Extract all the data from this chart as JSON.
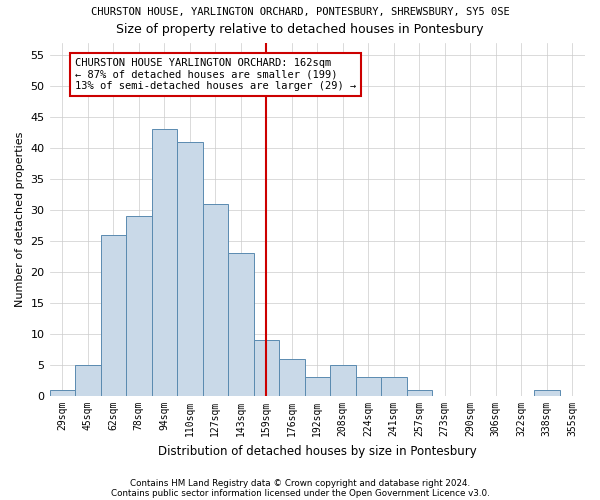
{
  "title": "CHURSTON HOUSE, YARLINGTON ORCHARD, PONTESBURY, SHREWSBURY, SY5 0SE",
  "subtitle": "Size of property relative to detached houses in Pontesbury",
  "xlabel": "Distribution of detached houses by size in Pontesbury",
  "ylabel": "Number of detached properties",
  "categories": [
    "29sqm",
    "45sqm",
    "62sqm",
    "78sqm",
    "94sqm",
    "110sqm",
    "127sqm",
    "143sqm",
    "159sqm",
    "176sqm",
    "192sqm",
    "208sqm",
    "224sqm",
    "241sqm",
    "257sqm",
    "273sqm",
    "290sqm",
    "306sqm",
    "322sqm",
    "338sqm",
    "355sqm"
  ],
  "values": [
    1,
    5,
    26,
    29,
    43,
    41,
    31,
    23,
    9,
    6,
    3,
    5,
    3,
    3,
    1,
    0,
    0,
    0,
    0,
    1,
    0
  ],
  "bar_color": "#c9d9e8",
  "bar_edge_color": "#5a8ab0",
  "vline_index": 8,
  "vline_color": "#cc0000",
  "annotation_title": "CHURSTON HOUSE YARLINGTON ORCHARD: 162sqm",
  "annotation_line1": "← 87% of detached houses are smaller (199)",
  "annotation_line2": "13% of semi-detached houses are larger (29) →",
  "annotation_box_color": "#cc0000",
  "ylim": [
    0,
    57
  ],
  "yticks": [
    0,
    5,
    10,
    15,
    20,
    25,
    30,
    35,
    40,
    45,
    50,
    55
  ],
  "footer1": "Contains HM Land Registry data © Crown copyright and database right 2024.",
  "footer2": "Contains public sector information licensed under the Open Government Licence v3.0.",
  "background_color": "#ffffff",
  "grid_color": "#cccccc"
}
